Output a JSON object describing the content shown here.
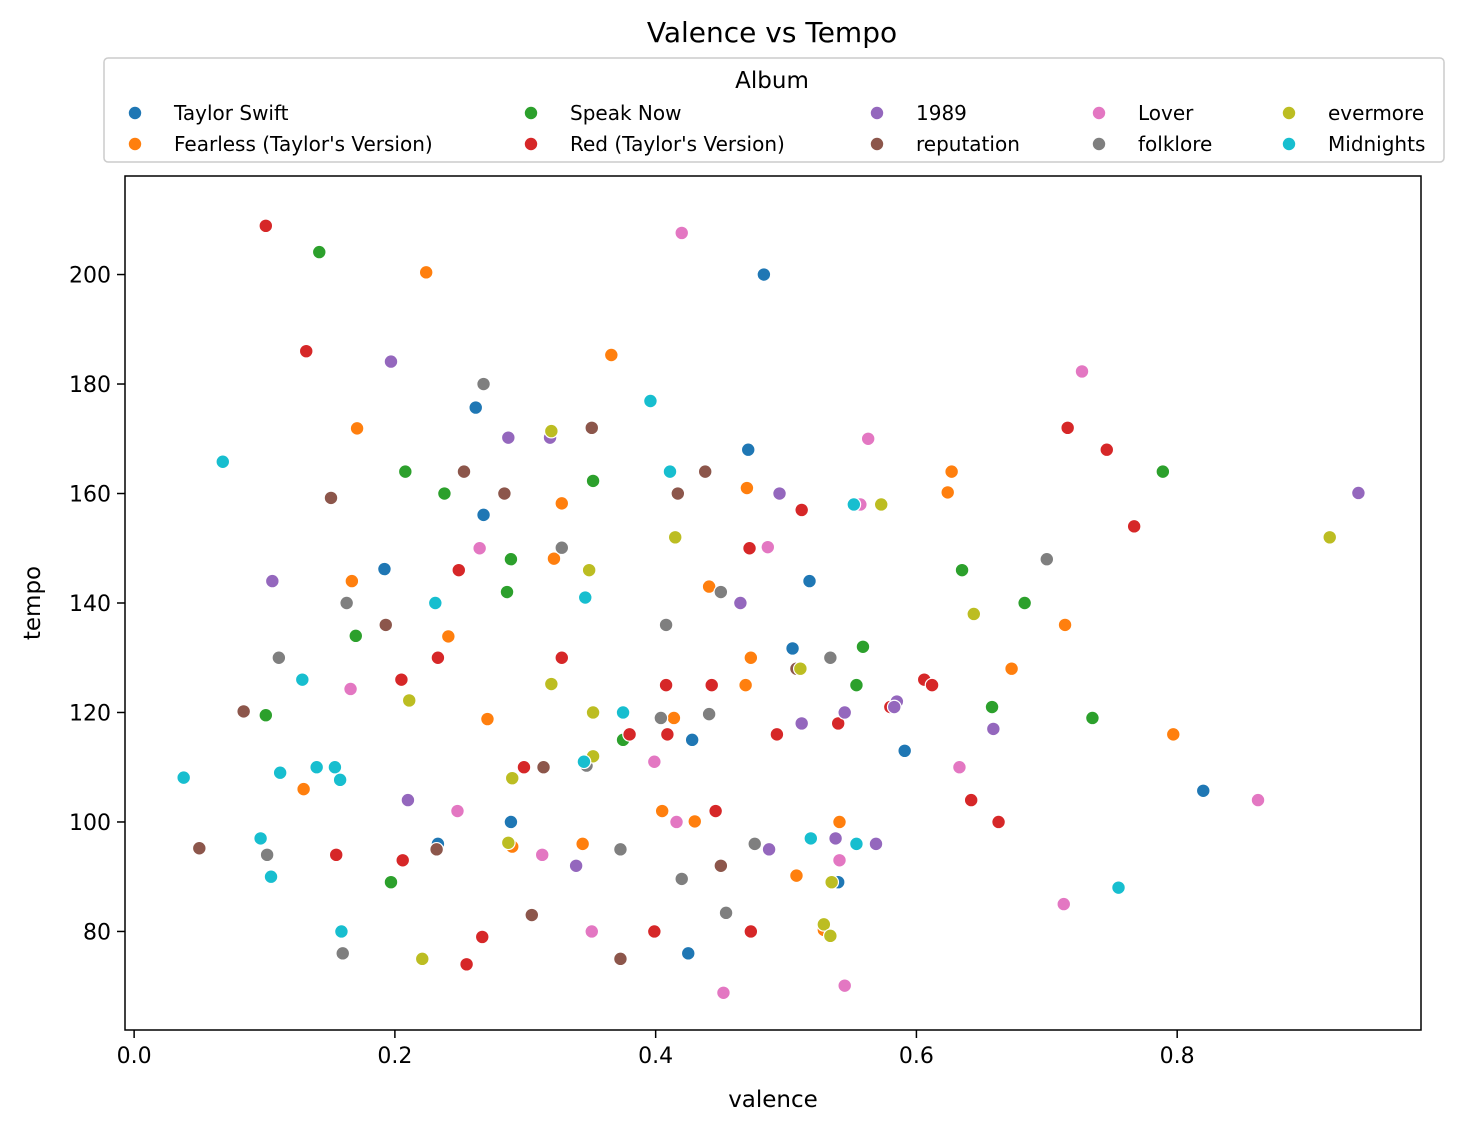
{
  "chart_data": {
    "type": "scatter",
    "title": "Valence vs Tempo",
    "xlabel": "valence",
    "ylabel": "tempo",
    "xlim": [
      -0.007,
      0.987
    ],
    "ylim": [
      62,
      218
    ],
    "xticks": [
      0.0,
      0.2,
      0.4,
      0.6,
      0.8
    ],
    "xtick_labels": [
      "0.0",
      "0.2",
      "0.4",
      "0.6",
      "0.8"
    ],
    "yticks": [
      80,
      100,
      120,
      140,
      160,
      180,
      200
    ],
    "ytick_labels": [
      "80",
      "100",
      "120",
      "140",
      "160",
      "180",
      "200"
    ],
    "grid": false,
    "legend": {
      "title": "Album",
      "placement": "top-center",
      "columns": 5
    },
    "series": [
      {
        "name": "Taylor Swift",
        "color": "#1f77b4",
        "points": [
          [
            0.262,
            175.7
          ],
          [
            0.268,
            156.1
          ],
          [
            0.192,
            146.2
          ],
          [
            0.471,
            168
          ],
          [
            0.483,
            200
          ],
          [
            0.518,
            144
          ],
          [
            0.505,
            131.7
          ],
          [
            0.591,
            113
          ],
          [
            0.428,
            115
          ],
          [
            0.289,
            100
          ],
          [
            0.233,
            96
          ],
          [
            0.425,
            76
          ],
          [
            0.54,
            89
          ],
          [
            0.82,
            105.7
          ]
        ]
      },
      {
        "name": "Fearless (Taylor's Version)",
        "color": "#ff7f0e",
        "points": [
          [
            0.224,
            200.4
          ],
          [
            0.366,
            185.3
          ],
          [
            0.171,
            171.9
          ],
          [
            0.328,
            158.2
          ],
          [
            0.322,
            148.1
          ],
          [
            0.167,
            144
          ],
          [
            0.241,
            133.9
          ],
          [
            0.271,
            118.8
          ],
          [
            0.13,
            106
          ],
          [
            0.29,
            95.5
          ],
          [
            0.344,
            96
          ],
          [
            0.405,
            102
          ],
          [
            0.43,
            100.1
          ],
          [
            0.414,
            119
          ],
          [
            0.441,
            143
          ],
          [
            0.47,
            161
          ],
          [
            0.473,
            130
          ],
          [
            0.469,
            125
          ],
          [
            0.508,
            90.2
          ],
          [
            0.541,
            100
          ],
          [
            0.529,
            80.3
          ],
          [
            0.627,
            164
          ],
          [
            0.624,
            160.2
          ],
          [
            0.714,
            136
          ],
          [
            0.673,
            128
          ],
          [
            0.797,
            116
          ]
        ]
      },
      {
        "name": "Speak Now",
        "color": "#2ca02c",
        "points": [
          [
            0.142,
            204.1
          ],
          [
            0.208,
            164
          ],
          [
            0.238,
            160
          ],
          [
            0.289,
            148
          ],
          [
            0.286,
            142
          ],
          [
            0.17,
            134
          ],
          [
            0.101,
            119.5
          ],
          [
            0.197,
            89
          ],
          [
            0.352,
            162.3
          ],
          [
            0.375,
            115
          ],
          [
            0.559,
            132
          ],
          [
            0.554,
            125
          ],
          [
            0.635,
            146
          ],
          [
            0.683,
            140
          ],
          [
            0.658,
            121
          ],
          [
            0.735,
            119
          ],
          [
            0.789,
            164
          ]
        ]
      },
      {
        "name": "Red (Taylor's Version)",
        "color": "#d62728",
        "points": [
          [
            0.101,
            208.9
          ],
          [
            0.132,
            186
          ],
          [
            0.249,
            146
          ],
          [
            0.205,
            126
          ],
          [
            0.233,
            130
          ],
          [
            0.328,
            130
          ],
          [
            0.299,
            110
          ],
          [
            0.155,
            94
          ],
          [
            0.206,
            93
          ],
          [
            0.267,
            79
          ],
          [
            0.255,
            74
          ],
          [
            0.38,
            116
          ],
          [
            0.408,
            125
          ],
          [
            0.409,
            116
          ],
          [
            0.399,
            80
          ],
          [
            0.443,
            125
          ],
          [
            0.446,
            102
          ],
          [
            0.472,
            150
          ],
          [
            0.473,
            80
          ],
          [
            0.493,
            116
          ],
          [
            0.512,
            157
          ],
          [
            0.54,
            118
          ],
          [
            0.58,
            121
          ],
          [
            0.606,
            126
          ],
          [
            0.612,
            125
          ],
          [
            0.642,
            104
          ],
          [
            0.663,
            100
          ],
          [
            0.716,
            172
          ],
          [
            0.746,
            168
          ],
          [
            0.767,
            154
          ]
        ]
      },
      {
        "name": "1989",
        "color": "#9467bd",
        "points": [
          [
            0.197,
            184.1
          ],
          [
            0.106,
            144
          ],
          [
            0.287,
            170.2
          ],
          [
            0.319,
            170.2
          ],
          [
            0.495,
            160
          ],
          [
            0.465,
            140
          ],
          [
            0.512,
            118
          ],
          [
            0.545,
            120
          ],
          [
            0.585,
            122
          ],
          [
            0.583,
            121
          ],
          [
            0.21,
            104
          ],
          [
            0.339,
            92
          ],
          [
            0.487,
            95
          ],
          [
            0.538,
            97
          ],
          [
            0.569,
            96
          ],
          [
            0.659,
            117
          ],
          [
            0.939,
            160.1
          ]
        ]
      },
      {
        "name": "reputation",
        "color": "#8c564b",
        "points": [
          [
            0.151,
            159.2
          ],
          [
            0.253,
            164
          ],
          [
            0.284,
            160
          ],
          [
            0.351,
            172
          ],
          [
            0.417,
            160
          ],
          [
            0.438,
            164
          ],
          [
            0.193,
            136
          ],
          [
            0.084,
            120.2
          ],
          [
            0.05,
            95.2
          ],
          [
            0.314,
            110
          ],
          [
            0.232,
            95
          ],
          [
            0.305,
            83
          ],
          [
            0.373,
            75
          ],
          [
            0.45,
            92
          ],
          [
            0.508,
            128
          ]
        ]
      },
      {
        "name": "Lover",
        "color": "#e377c2",
        "points": [
          [
            0.42,
            207.6
          ],
          [
            0.727,
            182.3
          ],
          [
            0.563,
            170
          ],
          [
            0.557,
            158
          ],
          [
            0.486,
            150.2
          ],
          [
            0.265,
            150
          ],
          [
            0.166,
            124.3
          ],
          [
            0.248,
            102
          ],
          [
            0.313,
            94
          ],
          [
            0.351,
            80
          ],
          [
            0.399,
            111
          ],
          [
            0.416,
            100
          ],
          [
            0.452,
            68.8
          ],
          [
            0.541,
            93
          ],
          [
            0.545,
            70.1
          ],
          [
            0.633,
            110
          ],
          [
            0.713,
            85
          ],
          [
            0.862,
            104
          ]
        ]
      },
      {
        "name": "folklore",
        "color": "#7f7f7f",
        "points": [
          [
            0.268,
            180
          ],
          [
            0.328,
            150.1
          ],
          [
            0.163,
            140
          ],
          [
            0.111,
            130
          ],
          [
            0.408,
            136
          ],
          [
            0.404,
            119
          ],
          [
            0.441,
            119.7
          ],
          [
            0.45,
            142
          ],
          [
            0.347,
            110.3
          ],
          [
            0.373,
            95
          ],
          [
            0.42,
            89.6
          ],
          [
            0.454,
            83.4
          ],
          [
            0.476,
            96
          ],
          [
            0.534,
            130
          ],
          [
            0.102,
            94
          ],
          [
            0.16,
            76
          ],
          [
            0.7,
            148
          ]
        ]
      },
      {
        "name": "evermore",
        "color": "#bcbd22",
        "points": [
          [
            0.32,
            171.4
          ],
          [
            0.415,
            152
          ],
          [
            0.573,
            158
          ],
          [
            0.349,
            146
          ],
          [
            0.211,
            122.2
          ],
          [
            0.32,
            125.2
          ],
          [
            0.352,
            120
          ],
          [
            0.352,
            112
          ],
          [
            0.29,
            108
          ],
          [
            0.287,
            96.2
          ],
          [
            0.221,
            75
          ],
          [
            0.511,
            128
          ],
          [
            0.535,
            89
          ],
          [
            0.529,
            81.3
          ],
          [
            0.534,
            79.2
          ],
          [
            0.644,
            138
          ],
          [
            0.917,
            152
          ]
        ]
      },
      {
        "name": "Midnights",
        "color": "#17becf",
        "points": [
          [
            0.068,
            165.8
          ],
          [
            0.396,
            176.9
          ],
          [
            0.411,
            164
          ],
          [
            0.552,
            158
          ],
          [
            0.346,
            141
          ],
          [
            0.231,
            140
          ],
          [
            0.129,
            126
          ],
          [
            0.375,
            120
          ],
          [
            0.345,
            111
          ],
          [
            0.14,
            110
          ],
          [
            0.154,
            110
          ],
          [
            0.158,
            107.7
          ],
          [
            0.112,
            109
          ],
          [
            0.038,
            108.1
          ],
          [
            0.097,
            97
          ],
          [
            0.105,
            90
          ],
          [
            0.159,
            80
          ],
          [
            0.519,
            97
          ],
          [
            0.554,
            96
          ],
          [
            0.755,
            88
          ]
        ]
      }
    ]
  }
}
